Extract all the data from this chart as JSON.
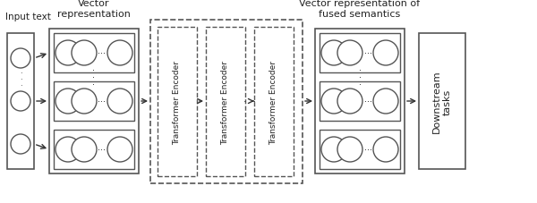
{
  "bg_color": "#ffffff",
  "title_vector_repr": "Vector\nrepresentation",
  "title_vector_fused": "Vector representation of\nfused semantics",
  "label_input": "Input text",
  "label_downstream": "Downstream\ntasks",
  "transformer_label": "Transformer Encoder",
  "box_color": "#555555",
  "circle_ec": "#666666",
  "text_color": "#222222",
  "arrow_color": "#333333"
}
